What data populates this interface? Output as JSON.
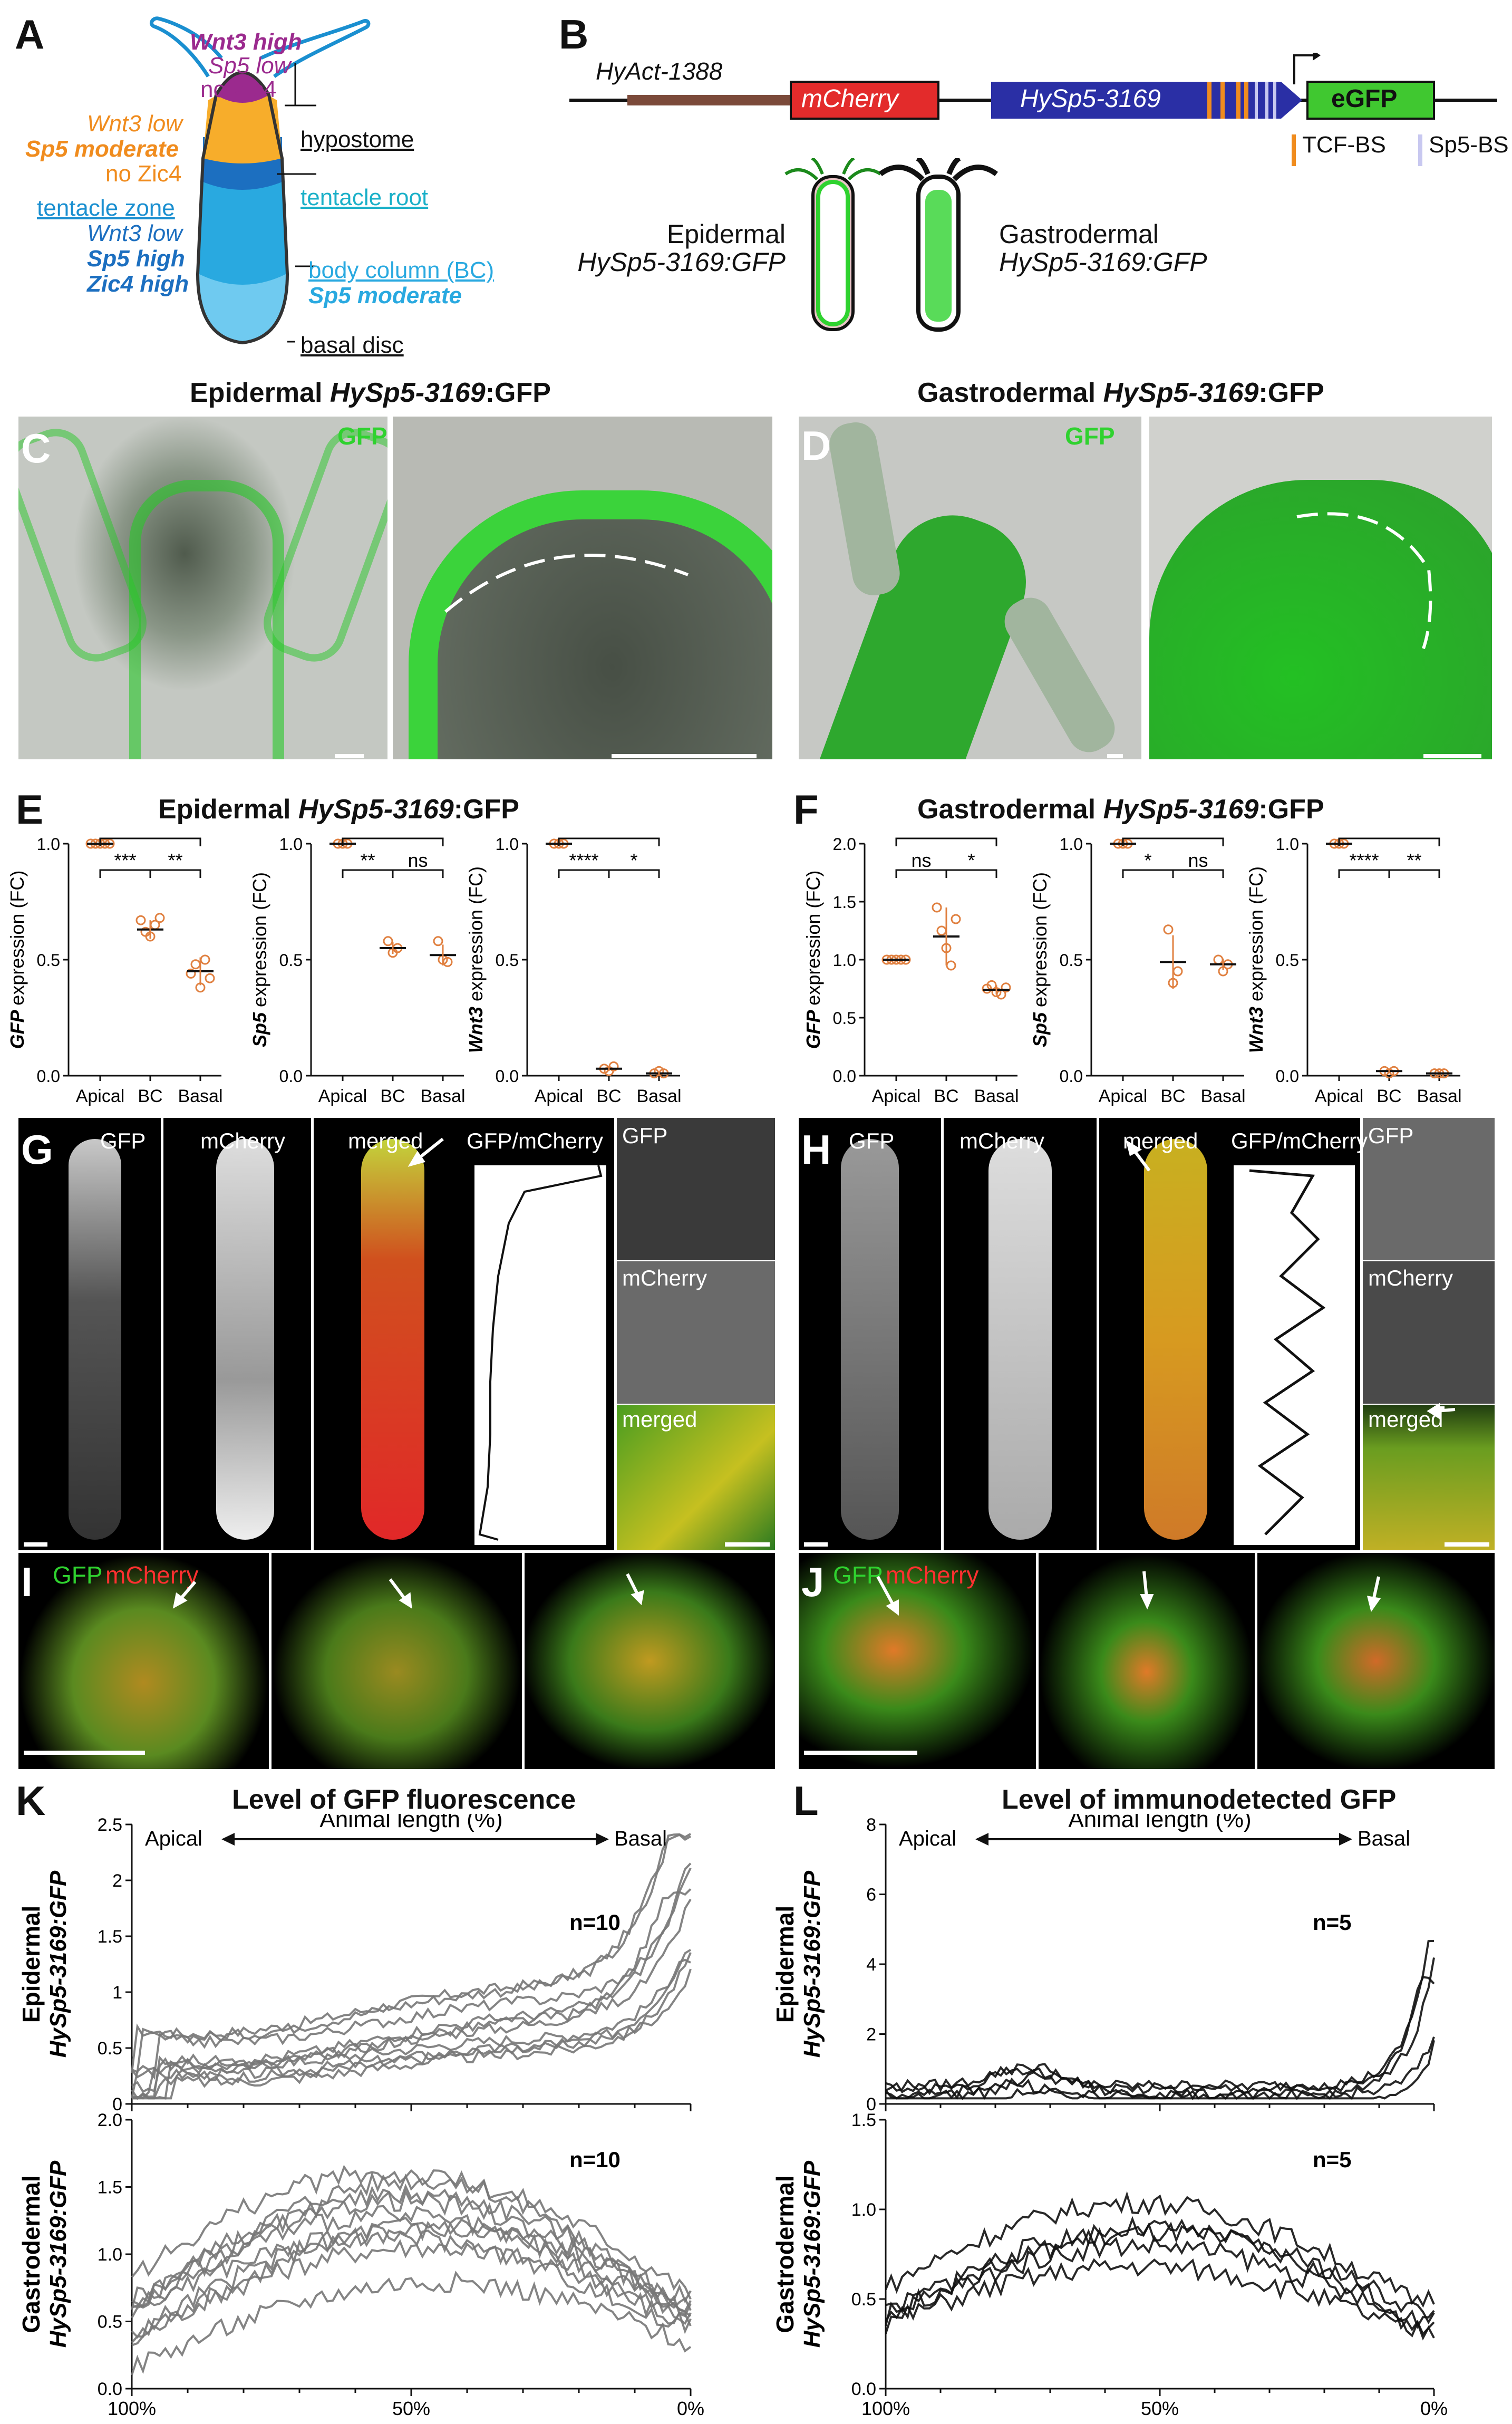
{
  "panels": {
    "A": {
      "letter": "A",
      "wnt3_high": "Wnt3 high",
      "sp5_low": "Sp5 low",
      "no_zic4_1": "no Zic4",
      "wnt3_low_1": "Wnt3 low",
      "sp5_moderate_1": "Sp5 moderate",
      "no_zic4_2": "no Zic4",
      "tentacle_zone": "tentacle zone",
      "wnt3_low_2": "Wnt3 low",
      "sp5_high": "Sp5 high",
      "zic4_high": "Zic4 high",
      "hypostome": "hypostome",
      "tentacle_root": "tentacle root",
      "body_column": "body column (BC)",
      "sp5_moderate_2": "Sp5 moderate",
      "basal_disc": "basal disc"
    },
    "B": {
      "letter": "B",
      "hyact": "HyAct-1388",
      "mcherry": "mCherry",
      "hysp5": "HySp5-3169",
      "egfp": "eGFP",
      "tcf_bs": "TCF-BS",
      "sp5_bs": "Sp5-BS",
      "epidermal_1": "Epidermal",
      "epidermal_2": "HySp5-3169:GFP",
      "gastrodermal_1": "Gastrodermal",
      "gastrodermal_2": "HySp5-3169:GFP"
    },
    "C": {
      "letter": "C",
      "title_a": "Epidermal ",
      "title_b": "HySp5-3169",
      "title_c": ":GFP",
      "gfp": "GFP"
    },
    "D": {
      "letter": "D",
      "title_a": "Gastrodermal ",
      "title_b": "HySp5-3169",
      "title_c": ":GFP",
      "gfp": "GFP"
    },
    "E": {
      "letter": "E",
      "title_a": "Epidermal ",
      "title_b": "HySp5-3169",
      "title_c": ":GFP"
    },
    "F": {
      "letter": "F",
      "title_a": "Gastrodermal ",
      "title_b": "HySp5-3169",
      "title_c": ":GFP"
    },
    "G": {
      "letter": "G",
      "gfp": "GFP",
      "mcherry": "mCherry",
      "merged": "merged",
      "ratio": "GFP/mCherry",
      "side_gfp": "GFP",
      "side_mcherry": "mCherry",
      "side_merged": "merged"
    },
    "H": {
      "letter": "H",
      "gfp": "GFP",
      "mcherry": "mCherry",
      "merged": "merged",
      "ratio": "GFP/mCherry",
      "side_gfp": "GFP",
      "side_mcherry": "mCherry",
      "side_merged": "merged"
    },
    "I": {
      "letter": "I",
      "gfp": "GFP",
      "mcherry": "mCherry"
    },
    "J": {
      "letter": "J",
      "gfp": "GFP",
      "mcherry": "mCherry"
    },
    "K": {
      "letter": "K",
      "title": "Level of GFP fluorescence",
      "apical": "Apical",
      "length": "Animal length (%)",
      "basal": "Basal",
      "ylab_top_1": "Epidermal",
      "ylab_top_2": "HySp5-3169:GFP",
      "ylab_bot_1": "Gastrodermal",
      "ylab_bot_2": "HySp5-3169:GFP",
      "n_top": "n=10",
      "n_bot": "n=10"
    },
    "L": {
      "letter": "L",
      "title": "Level of immunodetected GFP",
      "apical": "Apical",
      "length": "Animal length (%)",
      "basal": "Basal",
      "ylab_top_1": "Epidermal",
      "ylab_top_2": "HySp5-3169:GFP",
      "ylab_bot_1": "Gastrodermal",
      "ylab_bot_2": "HySp5-3169:GFP",
      "n_top": "n=5",
      "n_bot": "n=5"
    }
  },
  "colors": {
    "gfp": "#2fd22f",
    "mcherry": "#e53030",
    "wnt3": "#9b2a8e",
    "sp5_moderate": "#f08c1e",
    "zone_blue": "#1c6fc0",
    "bc_blue": "#29a9e0",
    "error": "#e08040",
    "trace_gray": "#777777"
  },
  "chart_data": [
    {
      "type": "scatter",
      "panel": "E",
      "ylabel": "GFP expression (FC)",
      "categories": [
        "Apical",
        "BC",
        "Basal"
      ],
      "ylim": [
        0,
        1.0
      ],
      "points": [
        [
          1,
          1,
          1,
          1,
          1
        ],
        [
          0.67,
          0.62,
          0.6,
          0.65,
          0.68
        ],
        [
          0.44,
          0.48,
          0.38,
          0.5,
          0.42
        ]
      ],
      "means": [
        1.0,
        0.63,
        0.45
      ],
      "significance": [
        {
          "pair": [
            "Apical",
            "BC"
          ],
          "label": "***"
        },
        {
          "pair": [
            "BC",
            "Basal"
          ],
          "label": "**"
        },
        {
          "pair": [
            "Apical",
            "Basal"
          ],
          "label": "***"
        }
      ]
    },
    {
      "type": "scatter",
      "panel": "E",
      "ylabel": "Sp5 expression (FC)",
      "categories": [
        "Apical",
        "BC",
        "Basal"
      ],
      "ylim": [
        0,
        1.0
      ],
      "points": [
        [
          1,
          1,
          1
        ],
        [
          0.58,
          0.53,
          0.55
        ],
        [
          0.58,
          0.5,
          0.49
        ]
      ],
      "means": [
        1.0,
        0.55,
        0.52
      ],
      "significance": [
        {
          "pair": [
            "Apical",
            "BC"
          ],
          "label": "**"
        },
        {
          "pair": [
            "BC",
            "Basal"
          ],
          "label": "ns"
        },
        {
          "pair": [
            "Apical",
            "Basal"
          ],
          "label": "**"
        }
      ]
    },
    {
      "type": "scatter",
      "panel": "E",
      "ylabel": "Wnt3 expression (FC)",
      "categories": [
        "Apical",
        "BC",
        "Basal"
      ],
      "ylim": [
        0,
        1.0
      ],
      "points": [
        [
          1,
          1,
          1
        ],
        [
          0.03,
          0.02,
          0.04
        ],
        [
          0.01,
          0.02,
          0.01
        ]
      ],
      "means": [
        1.0,
        0.03,
        0.01
      ],
      "significance": [
        {
          "pair": [
            "Apical",
            "BC"
          ],
          "label": "****"
        },
        {
          "pair": [
            "BC",
            "Basal"
          ],
          "label": "*"
        },
        {
          "pair": [
            "Apical",
            "Basal"
          ],
          "label": "****"
        }
      ]
    },
    {
      "type": "scatter",
      "panel": "F",
      "ylabel": "GFP expression (FC)",
      "categories": [
        "Apical",
        "BC",
        "Basal"
      ],
      "ylim": [
        0,
        2.0
      ],
      "points": [
        [
          1,
          1,
          1,
          1,
          1
        ],
        [
          1.45,
          1.25,
          1.1,
          0.95,
          1.35
        ],
        [
          0.75,
          0.78,
          0.72,
          0.7,
          0.76
        ]
      ],
      "means": [
        1.0,
        1.2,
        0.74
      ],
      "significance": [
        {
          "pair": [
            "Apical",
            "BC"
          ],
          "label": "ns"
        },
        {
          "pair": [
            "BC",
            "Basal"
          ],
          "label": "*"
        },
        {
          "pair": [
            "Apical",
            "Basal"
          ],
          "label": "***"
        }
      ]
    },
    {
      "type": "scatter",
      "panel": "F",
      "ylabel": "Sp5 expression (FC)",
      "categories": [
        "Apical",
        "BC",
        "Basal"
      ],
      "ylim": [
        0,
        1.0
      ],
      "points": [
        [
          1,
          1,
          1
        ],
        [
          0.63,
          0.4,
          0.45
        ],
        [
          0.5,
          0.45,
          0.48
        ]
      ],
      "means": [
        1.0,
        0.49,
        0.48
      ],
      "significance": [
        {
          "pair": [
            "Apical",
            "BC"
          ],
          "label": "*"
        },
        {
          "pair": [
            "BC",
            "Basal"
          ],
          "label": "ns"
        },
        {
          "pair": [
            "Apical",
            "Basal"
          ],
          "label": "**"
        }
      ]
    },
    {
      "type": "scatter",
      "panel": "F",
      "ylabel": "Wnt3 expression (FC)",
      "categories": [
        "Apical",
        "BC",
        "Basal"
      ],
      "ylim": [
        0,
        1.0
      ],
      "points": [
        [
          1,
          1,
          1
        ],
        [
          0.02,
          0.01,
          0.02
        ],
        [
          0.01,
          0.01,
          0.01
        ]
      ],
      "means": [
        1.0,
        0.02,
        0.01
      ],
      "significance": [
        {
          "pair": [
            "Apical",
            "BC"
          ],
          "label": "****"
        },
        {
          "pair": [
            "BC",
            "Basal"
          ],
          "label": "**"
        },
        {
          "pair": [
            "Apical",
            "Basal"
          ],
          "label": "****"
        }
      ]
    },
    {
      "type": "line",
      "panel": "K",
      "subplot": "epidermal",
      "xlabel": "Animal length (%)",
      "xlim": [
        100,
        0
      ],
      "ylim": [
        0,
        2.5
      ],
      "yticks": [
        0,
        0.5,
        1.0,
        1.5,
        2.0,
        2.5
      ],
      "xticks": [
        "100%",
        "50%",
        "0%"
      ],
      "n": 10
    },
    {
      "type": "line",
      "panel": "K",
      "subplot": "gastrodermal",
      "xlabel": "Animal length (%)",
      "xlim": [
        100,
        0
      ],
      "ylim": [
        0,
        2.0
      ],
      "yticks": [
        0,
        0.5,
        1.0,
        1.5,
        2.0
      ],
      "xticks": [
        "100%",
        "50%",
        "0%"
      ],
      "n": 10
    },
    {
      "type": "line",
      "panel": "L",
      "subplot": "epidermal",
      "xlabel": "Animal length (%)",
      "xlim": [
        100,
        0
      ],
      "ylim": [
        0,
        8
      ],
      "yticks": [
        0,
        2,
        4,
        6,
        8
      ],
      "xticks": [
        "100%",
        "50%",
        "0%"
      ],
      "n": 5
    },
    {
      "type": "line",
      "panel": "L",
      "subplot": "gastrodermal",
      "xlabel": "Animal length (%)",
      "xlim": [
        100,
        0
      ],
      "ylim": [
        0,
        1.5
      ],
      "yticks": [
        0,
        0.5,
        1.0,
        1.5
      ],
      "xticks": [
        "100%",
        "50%",
        "0%"
      ],
      "n": 5
    }
  ]
}
